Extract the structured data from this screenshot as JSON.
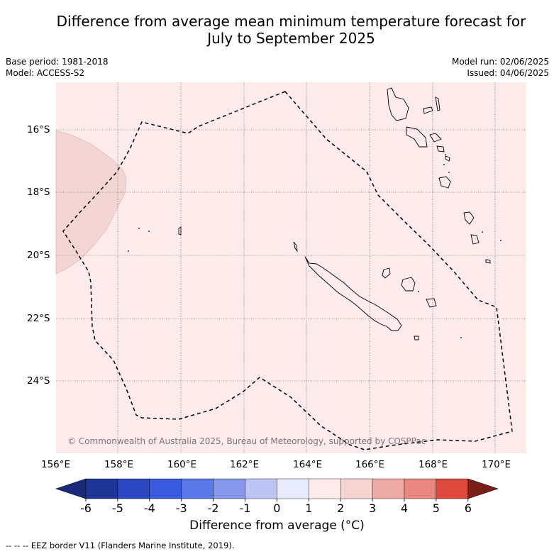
{
  "title_line1": "Difference from average mean minimum temperature forecast for",
  "title_line2": "July to September 2025",
  "base_period": "Base period: 1981-2018",
  "model": "Model: ACCESS-S2",
  "model_run": "Model run: 02/06/2025",
  "issued": "Issued: 04/06/2025",
  "copyright": "© Commonwealth of Australia 2025, Bureau of Meteorology, supported by COSPPac",
  "lon_labels": [
    "156°E",
    "158°E",
    "160°E",
    "162°E",
    "164°E",
    "166°E",
    "168°E",
    "170°E"
  ],
  "lat_labels": [
    "16°S",
    "18°S",
    "20°S",
    "22°S",
    "24°S"
  ],
  "colorbar": {
    "ticks": [
      "-6",
      "-5",
      "-4",
      "-3",
      "-2",
      "-1",
      "0",
      "1",
      "2",
      "3",
      "4",
      "5",
      "6"
    ],
    "colors": [
      "#1f3596",
      "#2b47c2",
      "#3a5ae0",
      "#5b78e8",
      "#8798ec",
      "#bcc4f3",
      "#e8ebfb",
      "#fdebe9",
      "#f4d3d1",
      "#eeaaa6",
      "#e8877f",
      "#dd4a3d",
      "#ac2722"
    ],
    "under_color": "#1a2a7a",
    "over_color": "#7a1e1a",
    "label": "Difference from average (°C)"
  },
  "map": {
    "background_color": "#fcebea",
    "anomaly_patch_color": "#f3d6d4"
  },
  "eez_note": "--  --  -- EEZ border V11 (Flanders Marine Institute, 2019)."
}
